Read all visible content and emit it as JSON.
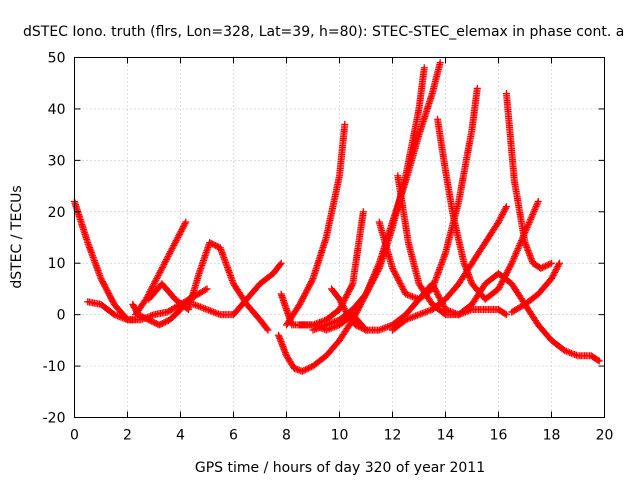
{
  "chart_data": {
    "type": "scatter",
    "title": "dSTEC Iono. truth (flrs, Lon=328, Lat=39, h=80): STEC-STEC_elemax in phase cont. a",
    "xlabel": "GPS time / hours of day 320 of year 2011",
    "ylabel": "dSTEC  / TECUs",
    "xlim": [
      0,
      20
    ],
    "ylim": [
      -20,
      50
    ],
    "xticks": [
      0,
      2,
      4,
      6,
      8,
      10,
      12,
      14,
      16,
      18,
      20
    ],
    "yticks": [
      -20,
      -10,
      0,
      10,
      20,
      30,
      40,
      50
    ],
    "grid": true,
    "marker": "plus",
    "color": "#ff0000",
    "series": [
      {
        "x": [
          0.0,
          0.5,
          1.0,
          1.5,
          2.0,
          2.3
        ],
        "y": [
          22,
          14,
          7,
          2,
          -1,
          -1
        ]
      },
      {
        "x": [
          0.5,
          1.0,
          1.5,
          2.0,
          2.5,
          3.0,
          3.5,
          4.0,
          4.5,
          5.0
        ],
        "y": [
          2.5,
          2,
          0,
          -1,
          -1,
          0,
          0.5,
          2,
          3.5,
          5
        ]
      },
      {
        "x": [
          2.3,
          2.7,
          3.1,
          3.5,
          3.9,
          4.2
        ],
        "y": [
          0,
          3,
          7,
          11,
          15,
          18
        ]
      },
      {
        "x": [
          2.2,
          2.4,
          2.8,
          3.2,
          3.6,
          4.0,
          4.5
        ],
        "y": [
          2,
          0,
          -1,
          -2,
          -1,
          1,
          4
        ]
      },
      {
        "x": [
          2.8,
          3.3,
          3.8,
          4.3,
          4.7,
          5.1,
          5.5,
          6.0,
          6.5,
          7.0,
          7.3
        ],
        "y": [
          3,
          6,
          3,
          1,
          8,
          14,
          13,
          6,
          2,
          -1,
          -3
        ]
      },
      {
        "x": [
          4.5,
          5.0,
          5.5,
          6.0,
          6.5,
          7.0,
          7.5,
          7.8
        ],
        "y": [
          2,
          1,
          0,
          0,
          3,
          6,
          8,
          10
        ]
      },
      {
        "x": [
          7.8,
          8.2,
          8.6,
          9.0,
          9.5,
          10.0,
          10.5,
          11.0,
          11.5,
          12.0,
          12.5,
          13.0,
          13.5,
          14.0,
          14.5,
          15.0,
          15.5,
          16.0,
          16.5,
          17.0,
          17.5,
          18.0,
          18.5,
          19.0,
          19.5,
          19.8
        ],
        "y": [
          4,
          -2,
          -2,
          -2,
          -3,
          -2,
          0,
          -3,
          -3,
          -2,
          0,
          3,
          6,
          1,
          0,
          2,
          6,
          8,
          6,
          2,
          -2,
          -5,
          -7,
          -8,
          -8,
          -9
        ]
      },
      {
        "x": [
          7.7,
          8.0,
          8.3,
          8.6,
          9.0,
          9.5,
          10.0,
          10.5,
          11.0,
          11.5,
          12.0,
          12.5,
          13.0,
          13.5,
          13.8
        ],
        "y": [
          -4,
          -8,
          -10.5,
          -11,
          -10,
          -8,
          -5,
          -1,
          4,
          10,
          18,
          26,
          35,
          43,
          49
        ]
      },
      {
        "x": [
          8.0,
          8.5,
          9.0,
          9.5,
          10.0,
          10.2
        ],
        "y": [
          -2,
          2,
          7,
          15,
          27,
          37
        ]
      },
      {
        "x": [
          9.0,
          9.5,
          10.0,
          10.5,
          11.0,
          11.5,
          12.0,
          12.5,
          13.0,
          13.2
        ],
        "y": [
          -3,
          -2,
          -1,
          1,
          4,
          9,
          17,
          27,
          40,
          48
        ]
      },
      {
        "x": [
          8.5,
          9.0,
          9.5,
          10.0,
          10.5,
          10.9
        ],
        "y": [
          -2,
          -2,
          -1,
          1,
          6,
          20
        ]
      },
      {
        "x": [
          9.7,
          10.0,
          10.3,
          10.6,
          11.0
        ],
        "y": [
          5,
          3,
          0,
          -2,
          -3
        ]
      },
      {
        "x": [
          11.5,
          12.0,
          12.5,
          13.0,
          13.5,
          14.0,
          14.5,
          15.0,
          15.2
        ],
        "y": [
          18,
          9,
          4,
          3,
          5,
          12,
          22,
          36,
          44
        ]
      },
      {
        "x": [
          12.0,
          12.5,
          13.0,
          13.5,
          14.0,
          14.5,
          15.0,
          15.5,
          16.0,
          16.3
        ],
        "y": [
          -3,
          -1,
          0,
          1,
          3,
          6,
          10,
          14,
          18,
          21
        ]
      },
      {
        "x": [
          12.2,
          12.6,
          13.0,
          13.5,
          14.0,
          14.5,
          15.0,
          15.5,
          16.0,
          16.3
        ],
        "y": [
          27,
          14,
          6,
          2,
          0,
          0,
          1,
          1,
          1,
          0
        ]
      },
      {
        "x": [
          13.7,
          14.0,
          14.3,
          14.7,
          15.0,
          15.5,
          16.0,
          16.5,
          17.0,
          17.5
        ],
        "y": [
          38,
          28,
          19,
          10,
          6,
          3,
          5,
          10,
          16,
          22
        ]
      },
      {
        "x": [
          16.3,
          16.6,
          17.0,
          17.3,
          17.6,
          18.0
        ],
        "y": [
          43,
          26,
          14,
          10,
          9,
          10
        ]
      },
      {
        "x": [
          16.5,
          17.0,
          17.5,
          18.0,
          18.3
        ],
        "y": [
          0.5,
          2,
          4,
          7,
          10
        ]
      }
    ]
  }
}
